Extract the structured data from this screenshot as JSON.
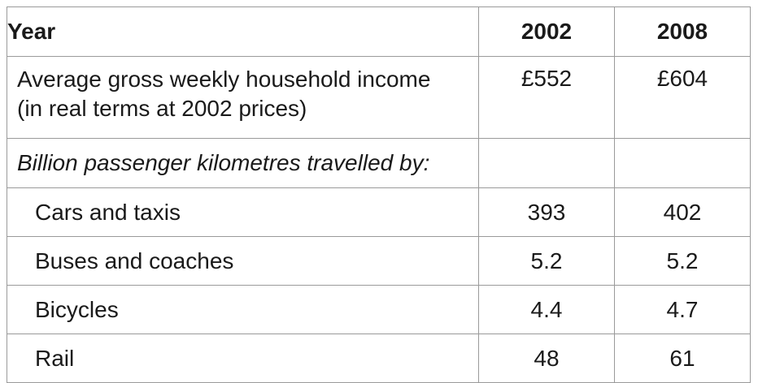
{
  "table": {
    "header": {
      "label": "Year",
      "years": [
        "2002",
        "2008"
      ]
    },
    "income": {
      "label_line1": "Average gross weekly household income",
      "label_line2": "(in real terms at 2002 prices)",
      "values": [
        "£552",
        "£604"
      ]
    },
    "subheading": "Billion passenger kilometres travelled by:",
    "modes": [
      {
        "label": "Cars and taxis",
        "values": [
          "393",
          "402"
        ]
      },
      {
        "label": "Buses and coaches",
        "values": [
          "5.2",
          "5.2"
        ]
      },
      {
        "label": "Bicycles",
        "values": [
          "4.4",
          "4.7"
        ]
      },
      {
        "label": "Rail",
        "values": [
          "48",
          "61"
        ]
      }
    ]
  }
}
